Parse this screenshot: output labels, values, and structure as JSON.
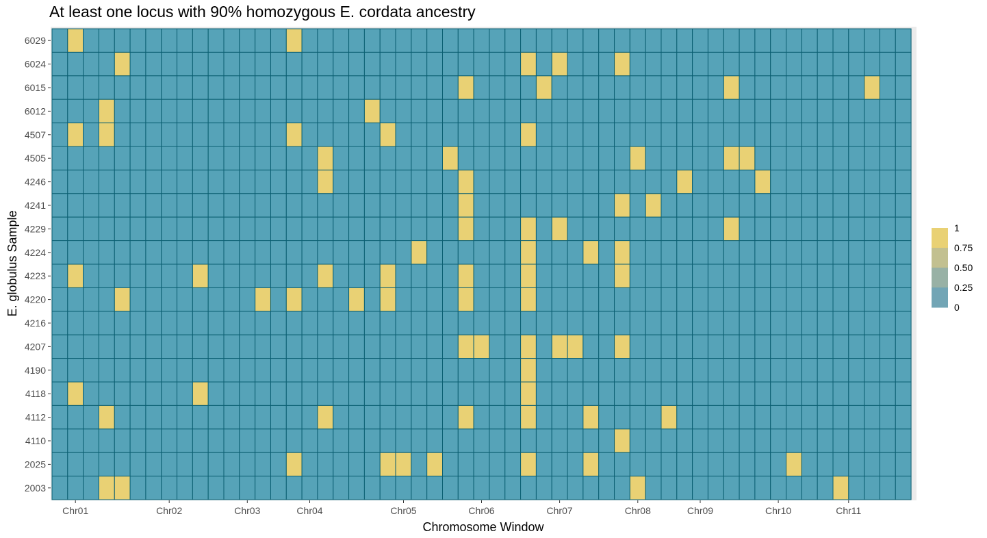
{
  "chart_data": {
    "type": "heatmap",
    "title": "At least one locus with 90% homozygous E. cordata ancestry",
    "xlabel": "Chromosome Window",
    "ylabel": "E. globulus Sample",
    "n_windows": 55,
    "x_tick_labels": [
      {
        "label": "Chr01",
        "window": 1.5
      },
      {
        "label": "Chr02",
        "window": 7.5
      },
      {
        "label": "Chr03",
        "window": 12.5
      },
      {
        "label": "Chr04",
        "window": 16.5
      },
      {
        "label": "Chr05",
        "window": 22.5
      },
      {
        "label": "Chr06",
        "window": 27.5
      },
      {
        "label": "Chr07",
        "window": 32.5
      },
      {
        "label": "Chr08",
        "window": 37.5
      },
      {
        "label": "Chr09",
        "window": 41.5
      },
      {
        "label": "Chr10",
        "window": 46.5
      },
      {
        "label": "Chr11",
        "window": 51
      }
    ],
    "samples": [
      "6029",
      "6024",
      "6015",
      "6012",
      "4507",
      "4505",
      "4246",
      "4241",
      "4229",
      "4224",
      "4223",
      "4220",
      "4216",
      "4207",
      "4190",
      "4118",
      "4112",
      "4110",
      "2025",
      "2003"
    ],
    "cells_value_1": [
      [
        1,
        15
      ],
      [
        4,
        30,
        32,
        36
      ],
      [
        26,
        31,
        43,
        52
      ],
      [
        3,
        20
      ],
      [
        1,
        3,
        15,
        21,
        30
      ],
      [
        17,
        25,
        37,
        43,
        44
      ],
      [
        17,
        26,
        40,
        45
      ],
      [
        26,
        36,
        38
      ],
      [
        26,
        30,
        32,
        43
      ],
      [
        23,
        30,
        34,
        36
      ],
      [
        1,
        9,
        17,
        21,
        26,
        30,
        36
      ],
      [
        4,
        13,
        15,
        19,
        21,
        26,
        30
      ],
      [],
      [
        26,
        27,
        30,
        32,
        33,
        36
      ],
      [
        30
      ],
      [
        1,
        9,
        30
      ],
      [
        3,
        17,
        26,
        30,
        34,
        39
      ],
      [
        36
      ],
      [
        15,
        21,
        22,
        24,
        30,
        34,
        47
      ],
      [
        3,
        4,
        37,
        50
      ]
    ],
    "legend": {
      "labels": [
        "1",
        "0.75",
        "0.50",
        "0.25",
        "0"
      ],
      "colors": [
        "#e9d174",
        "#c2c090",
        "#98b1a5",
        "#72a5b5",
        "#56a3b8"
      ]
    },
    "colors": {
      "low": "#56a3b8",
      "high": "#e9d174",
      "cell_border": "#0b5f72",
      "panel_border": "#eeeeee"
    }
  }
}
